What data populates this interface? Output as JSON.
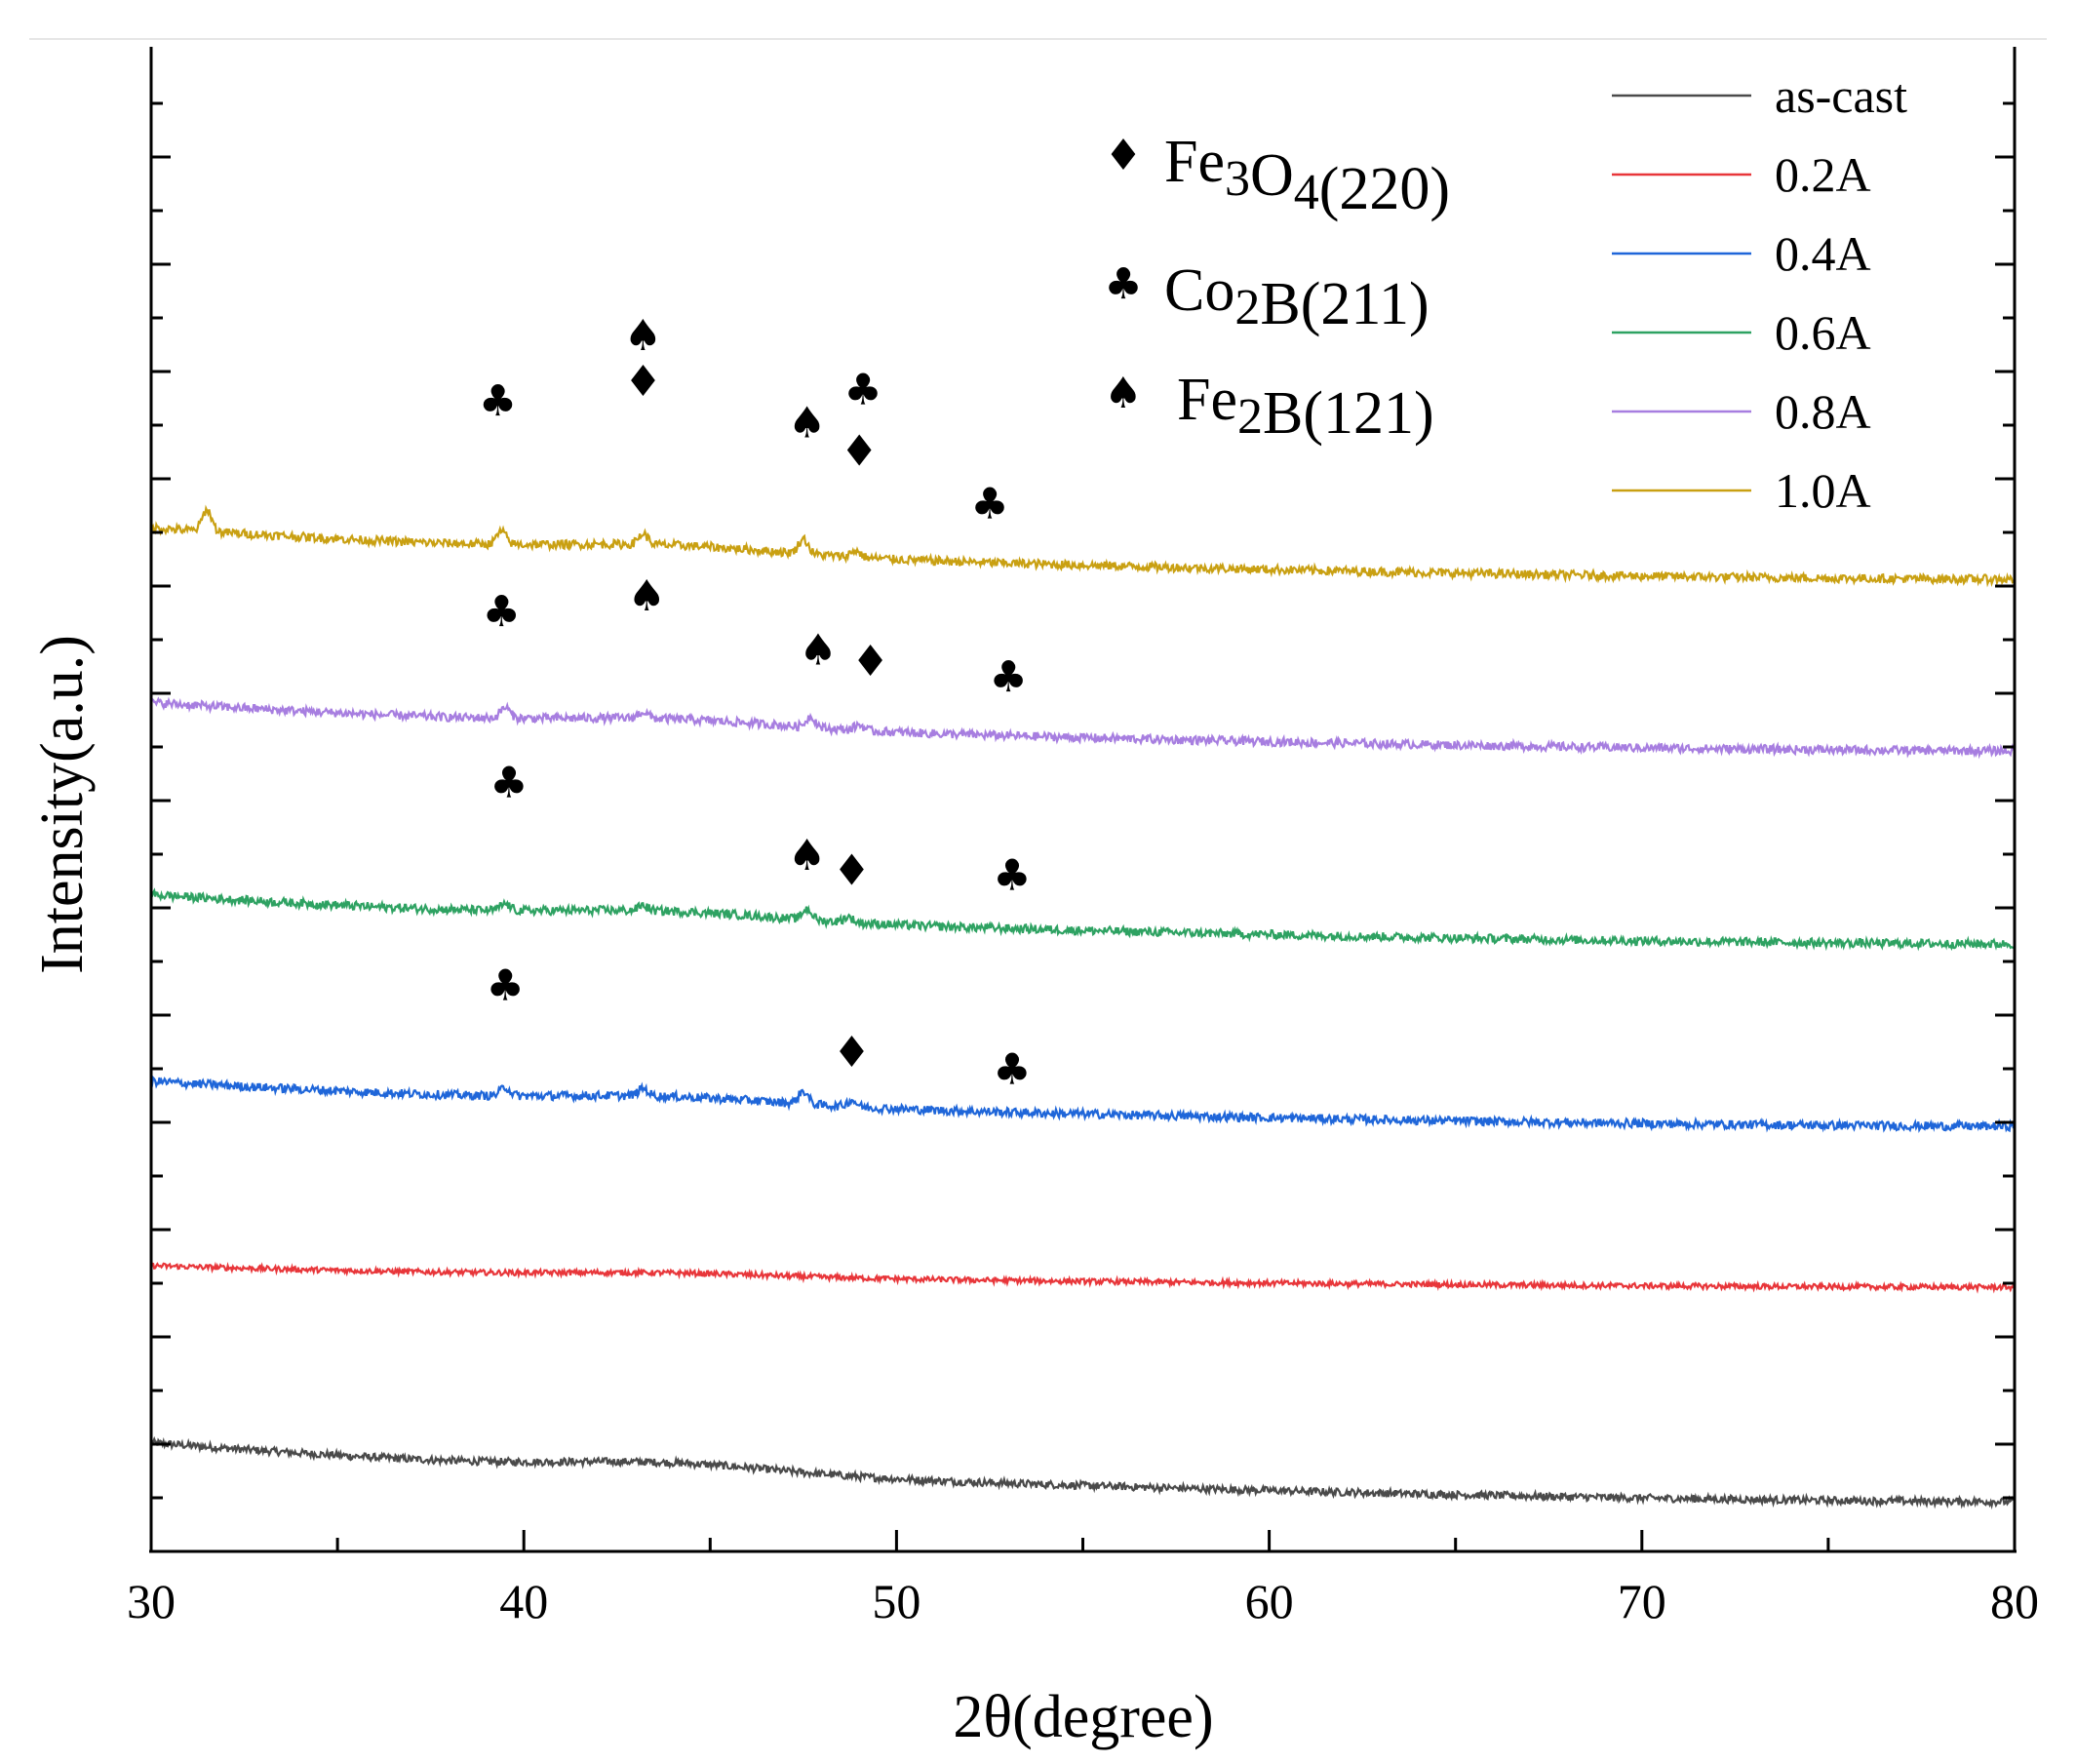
{
  "chart_data": {
    "type": "line",
    "title": "",
    "xlabel": "2θ(degree)",
    "ylabel": "Intensity(a.u.)",
    "xlim": [
      30,
      80
    ],
    "xticks": [
      30,
      40,
      50,
      60,
      70,
      80
    ],
    "yticks_labeled": false,
    "grid": false,
    "legend_position": "top-right",
    "series": [
      {
        "name": "as-cast",
        "color": "#4a4a4a",
        "offset": 0,
        "amplitude": 0.55,
        "noise": 0.035,
        "peaks": []
      },
      {
        "name": "0.2A",
        "color": "#e8363a",
        "offset": 2,
        "amplitude": 0.2,
        "noise": 0.025,
        "peaks": []
      },
      {
        "name": "0.4A",
        "color": "#1f66d9",
        "offset": 3.5,
        "amplitude": 0.42,
        "noise": 0.04,
        "peaks": [
          [
            39.5,
            0.08
          ],
          [
            43.2,
            0.07
          ],
          [
            47.5,
            0.12
          ],
          [
            48.8,
            0.06
          ]
        ]
      },
      {
        "name": "0.6A",
        "color": "#2ea262",
        "offset": 5.2,
        "amplitude": 0.46,
        "noise": 0.04,
        "peaks": [
          [
            39.5,
            0.06
          ],
          [
            43.2,
            0.05
          ],
          [
            47.6,
            0.1
          ],
          [
            48.7,
            0.05
          ]
        ]
      },
      {
        "name": "0.8A",
        "color": "#a77ee0",
        "offset": 7,
        "amplitude": 0.45,
        "noise": 0.04,
        "peaks": [
          [
            39.5,
            0.1
          ],
          [
            43.2,
            0.06
          ],
          [
            47.7,
            0.1
          ],
          [
            49,
            0.05
          ]
        ]
      },
      {
        "name": "1.0A",
        "color": "#c9a012",
        "offset": 8.6,
        "amplitude": 0.48,
        "noise": 0.04,
        "peaks": [
          [
            31.5,
            0.2
          ],
          [
            39.4,
            0.12
          ],
          [
            43.2,
            0.1
          ],
          [
            47.5,
            0.14
          ],
          [
            48.9,
            0.06
          ]
        ]
      }
    ],
    "key": [
      {
        "symbol": "♦",
        "formula": "Fe3O4(220)",
        "parts": [
          [
            "Fe",
            0
          ],
          [
            "3",
            1
          ],
          [
            "O",
            0
          ],
          [
            "4",
            1
          ],
          [
            "(220)",
            0
          ]
        ]
      },
      {
        "symbol": "♣",
        "formula": "Co2B(211)",
        "parts": [
          [
            "Co",
            0
          ],
          [
            "2",
            1
          ],
          [
            "B(211)",
            0
          ]
        ]
      },
      {
        "symbol": "♠",
        "formula": "Fe2B(121)",
        "parts": [
          [
            "Fe",
            0
          ],
          [
            "2",
            1
          ],
          [
            "B(121)",
            0
          ]
        ]
      }
    ],
    "peak_markers": [
      {
        "series": "1.0A",
        "symbol": "♣",
        "x": 39.3,
        "dy": 1.25
      },
      {
        "series": "1.0A",
        "symbol": "♠",
        "x": 43.2,
        "dy": 1.85
      },
      {
        "series": "1.0A",
        "symbol": "♦",
        "x": 43.2,
        "dy": 1.42
      },
      {
        "series": "1.0A",
        "symbol": "♠",
        "x": 47.6,
        "dy": 1.12
      },
      {
        "series": "1.0A",
        "symbol": "♣",
        "x": 49.1,
        "dy": 1.55
      },
      {
        "series": "1.0A",
        "symbol": "♦",
        "x": 49.0,
        "dy": 0.95
      },
      {
        "series": "1.0A",
        "symbol": "♣",
        "x": 52.5,
        "dy": 0.55
      },
      {
        "series": "0.8A",
        "symbol": "♣",
        "x": 39.4,
        "dy": 0.92
      },
      {
        "series": "0.8A",
        "symbol": "♠",
        "x": 43.3,
        "dy": 1.1
      },
      {
        "series": "0.8A",
        "symbol": "♠",
        "x": 47.9,
        "dy": 0.7
      },
      {
        "series": "0.8A",
        "symbol": "♦",
        "x": 49.3,
        "dy": 0.65
      },
      {
        "series": "0.8A",
        "symbol": "♣",
        "x": 53.0,
        "dy": 0.55
      },
      {
        "series": "0.6A",
        "symbol": "♣",
        "x": 39.6,
        "dy": 1.15
      },
      {
        "series": "0.6A",
        "symbol": "♠",
        "x": 47.6,
        "dy": 0.5
      },
      {
        "series": "0.6A",
        "symbol": "♦",
        "x": 48.8,
        "dy": 0.45
      },
      {
        "series": "0.6A",
        "symbol": "♣",
        "x": 53.1,
        "dy": 0.5
      },
      {
        "series": "0.4A",
        "symbol": "♣",
        "x": 39.5,
        "dy": 0.95
      },
      {
        "series": "0.4A",
        "symbol": "♦",
        "x": 48.8,
        "dy": 0.45
      },
      {
        "series": "0.4A",
        "symbol": "♣",
        "x": 53.1,
        "dy": 0.4
      }
    ]
  }
}
